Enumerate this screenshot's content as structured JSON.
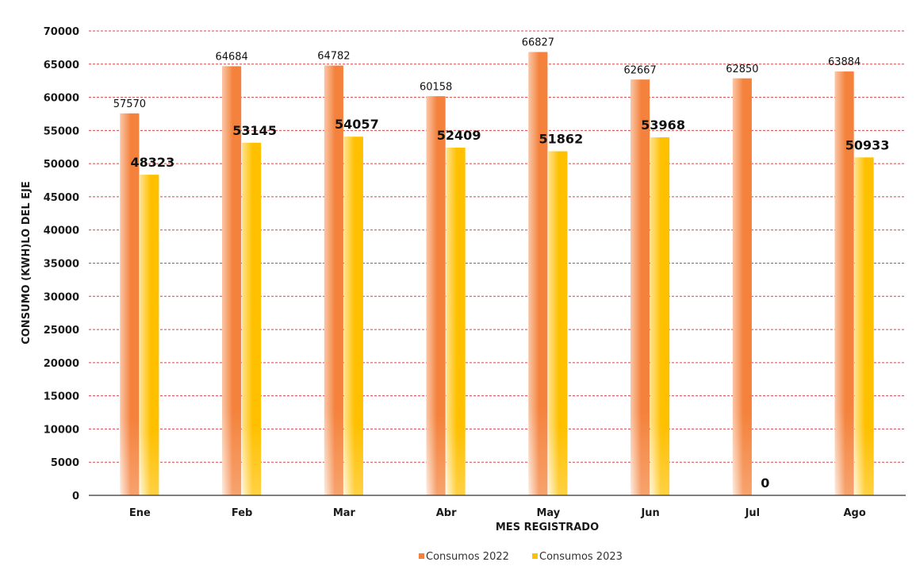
{
  "chart_data": {
    "type": "bar",
    "title": "",
    "xlabel": "MES REGISTRADO",
    "ylabel": "CONSUMO (KWH)LO DEL EJE",
    "ylim": [
      0,
      70000
    ],
    "ytick_step": 5000,
    "grid": true,
    "legend_position": "bottom",
    "categories": [
      "Ene",
      "Feb",
      "Mar",
      "Abr",
      "May",
      "Jun",
      "Jul",
      "Ago"
    ],
    "series": [
      {
        "name": "Consumos 2022",
        "color": "#F4823C",
        "values": [
          57570,
          64684,
          64782,
          60158,
          66827,
          62667,
          62850,
          63884
        ]
      },
      {
        "name": "Consumos 2023",
        "color": "#FFC000",
        "values": [
          48323,
          53145,
          54057,
          52409,
          51862,
          53968,
          0,
          50933
        ]
      }
    ]
  }
}
